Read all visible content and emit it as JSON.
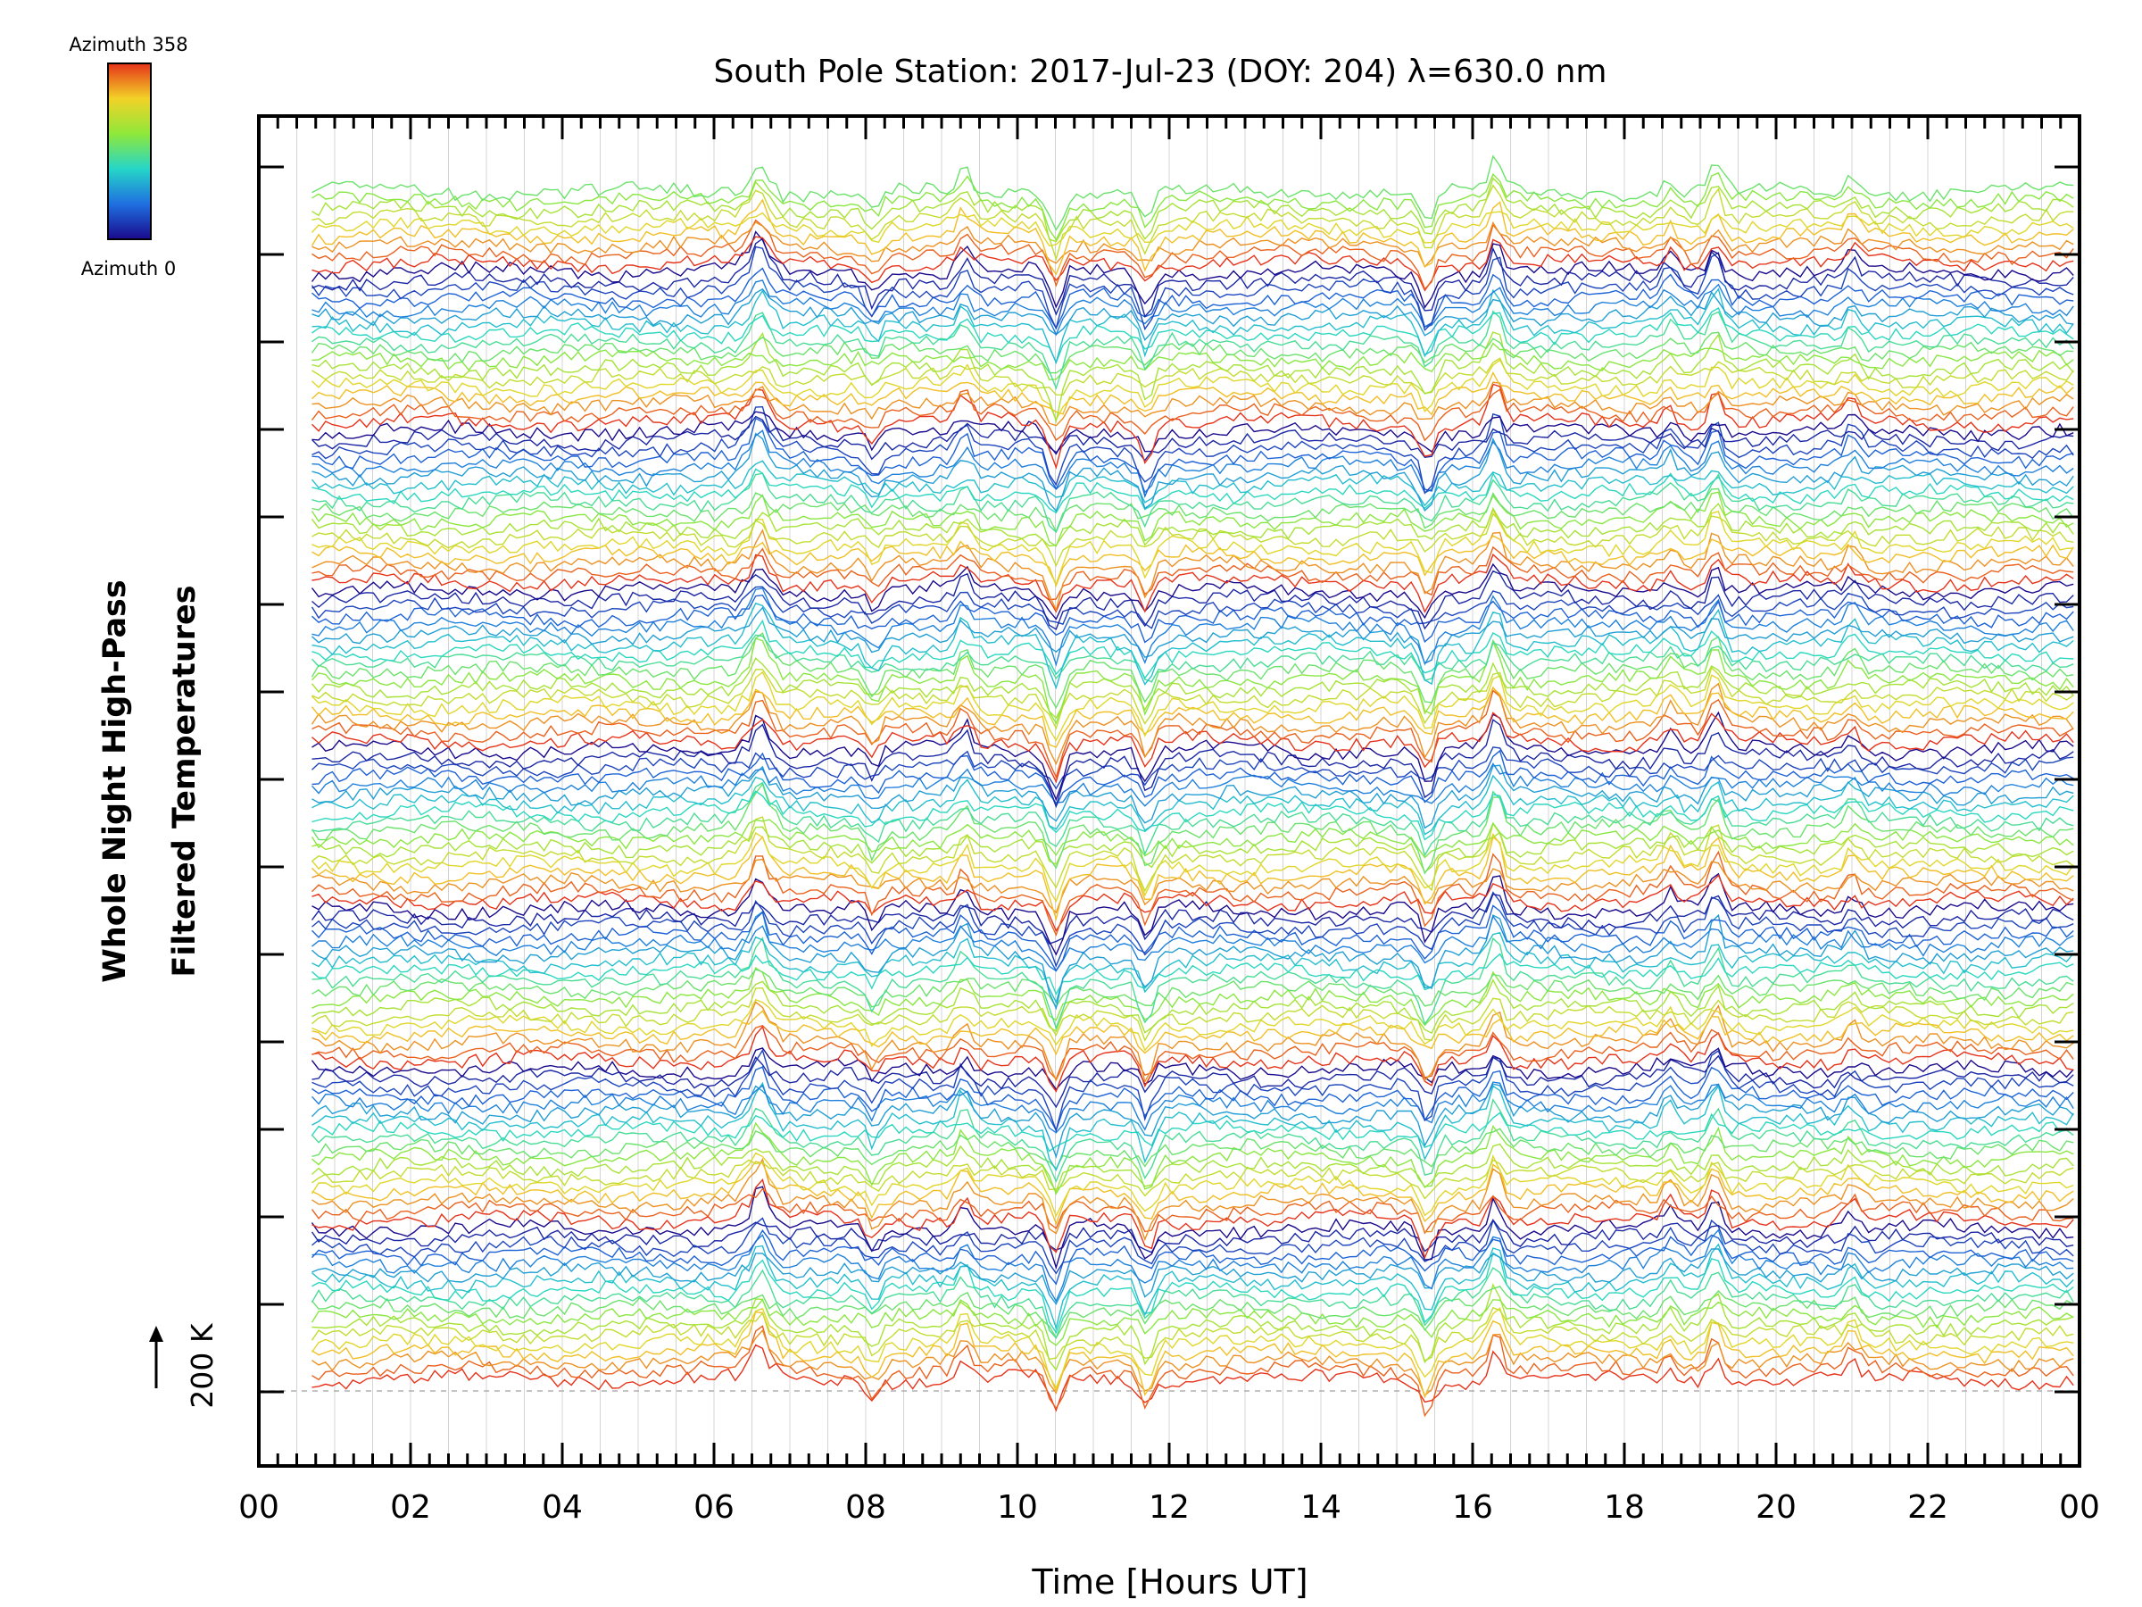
{
  "chart_data": {
    "type": "line",
    "title": "South Pole Station: 2017-Jul-23 (DOY: 204) λ=630.0 nm",
    "xlabel": "Time [Hours UT]",
    "ylabel_line1": "Whole Night High-Pass",
    "ylabel_line2": "Filtered Temperatures",
    "scale_label": "200 K",
    "x_tick_labels": [
      "00",
      "02",
      "04",
      "06",
      "08",
      "10",
      "12",
      "14",
      "16",
      "18",
      "20",
      "22",
      "00"
    ],
    "xlim": [
      0,
      24
    ],
    "grid": true,
    "colorbar": {
      "top_label": "Azimuth 358",
      "bottom_label": "Azimuth 0",
      "colormap": "rainbow (blue to red)",
      "min": 0,
      "max": 358
    },
    "series_count": 135,
    "series_per_group": 18,
    "time_range_hours": [
      0.7,
      24.0
    ],
    "spike_times_hours": [
      6.6,
      8.1,
      9.3,
      10.5,
      11.7,
      15.4,
      16.3,
      18.6,
      19.2,
      21.0
    ],
    "colors": {
      "axis": "#000000",
      "grid": "#d4d4d4",
      "dashed_baseline": "#b0b0b0"
    }
  }
}
